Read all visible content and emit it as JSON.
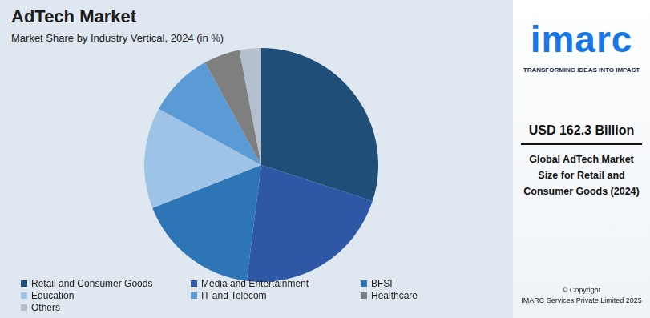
{
  "chart_data": {
    "type": "pie",
    "title": "AdTech Market",
    "subtitle": "Market Share by Industry Vertical, 2024 (in %)",
    "categories": [
      "Retail and Consumer Goods",
      "Media and Entertainment",
      "BFSI",
      "Education",
      "IT and Telecom",
      "Healthcare",
      "Others"
    ],
    "values": [
      30,
      22,
      17,
      14,
      9,
      5,
      3
    ],
    "colors": [
      "#1f4e79",
      "#2e58a6",
      "#2e75b6",
      "#9dc3e6",
      "#5b9bd5",
      "#7f7f7f",
      "#b4bfcd"
    ],
    "legend": "bottom"
  },
  "side_panel": {
    "logo": "imarc",
    "tagline": "TRANSFORMING IDEAS INTO IMPACT",
    "value": "USD 162.3 Billion",
    "caption": "Global AdTech Market Size for Retail and Consumer Goods (2024)",
    "copyright": [
      "© Copyright",
      "IMARC Services Private Limited 2025"
    ]
  }
}
